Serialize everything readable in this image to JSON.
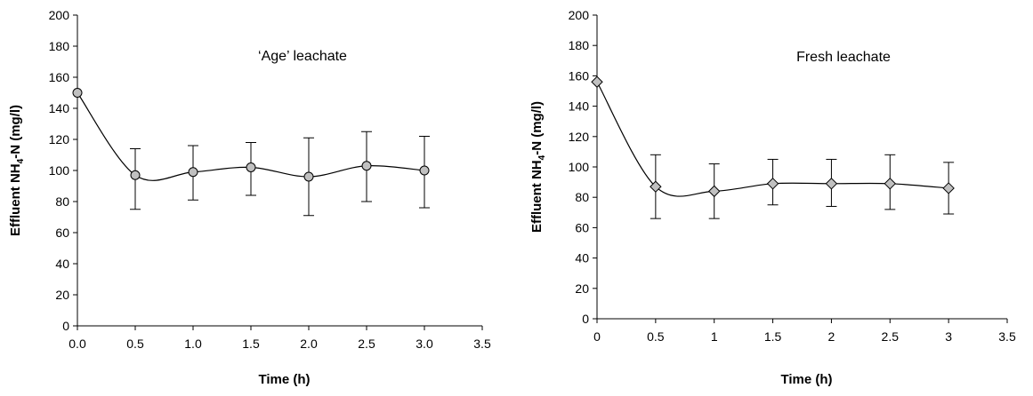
{
  "chart_data": [
    {
      "type": "line",
      "annotation": "‘Age’ leachate",
      "xlabel": "Time  (h)",
      "ylabel_main": "Effluent NH",
      "ylabel_sub": "4",
      "ylabel_tail": "-N  (mg/l)",
      "xlim": [
        0,
        3.5
      ],
      "ylim": [
        0,
        200
      ],
      "xticks": [
        "0.0",
        "0.5",
        "1.0",
        "1.5",
        "2.0",
        "2.5",
        "3.0",
        "3.5"
      ],
      "yticks": [
        "0",
        "20",
        "40",
        "60",
        "80",
        "100",
        "120",
        "140",
        "160",
        "180",
        "200"
      ],
      "grid": false,
      "marker": "circle",
      "marker_color": "#c0c0c0",
      "x": [
        0,
        0.5,
        1.0,
        1.5,
        2.0,
        2.5,
        3.0
      ],
      "y": [
        150,
        97,
        99,
        102,
        96,
        103,
        100
      ],
      "error_low": [
        150,
        75,
        81,
        84,
        71,
        80,
        76
      ],
      "error_high": [
        150,
        114,
        116,
        118,
        121,
        125,
        122
      ]
    },
    {
      "type": "line",
      "annotation": "Fresh leachate",
      "xlabel": "Time  (h)",
      "ylabel_main": "Effluent NH",
      "ylabel_sub": "4",
      "ylabel_tail": "-N  (mg/l)",
      "xlim": [
        0,
        3.5
      ],
      "ylim": [
        0,
        200
      ],
      "xticks": [
        "0",
        "0.5",
        "1",
        "1.5",
        "2",
        "2.5",
        "3",
        "3.5"
      ],
      "yticks": [
        "0",
        "20",
        "40",
        "60",
        "80",
        "100",
        "120",
        "140",
        "160",
        "180",
        "200"
      ],
      "grid": false,
      "marker": "diamond",
      "marker_color": "#c0c0c0",
      "x": [
        0,
        0.5,
        1.0,
        1.5,
        2.0,
        2.5,
        3.0
      ],
      "y": [
        156,
        87,
        84,
        89,
        89,
        89,
        86
      ],
      "error_low": [
        156,
        66,
        66,
        75,
        74,
        72,
        69
      ],
      "error_high": [
        156,
        108,
        102,
        105,
        105,
        108,
        103
      ]
    }
  ]
}
